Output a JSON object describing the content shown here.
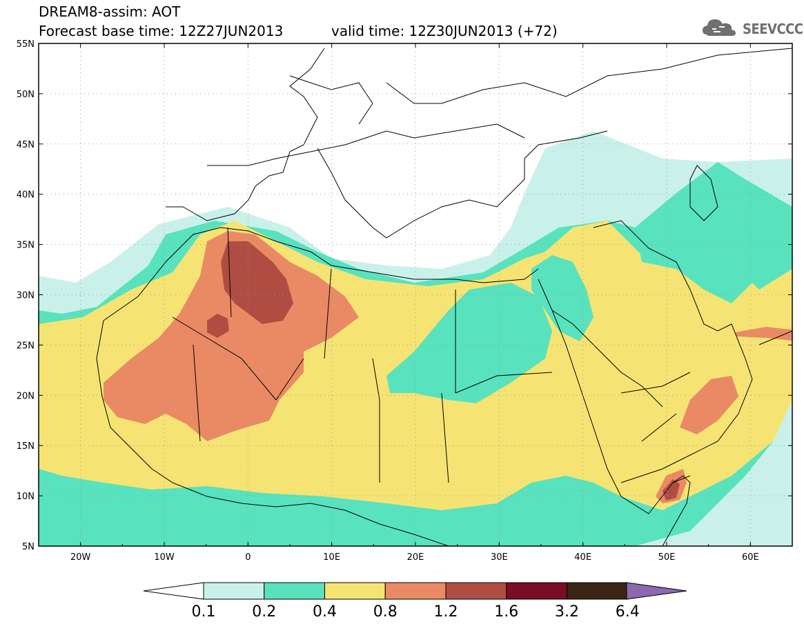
{
  "header": {
    "model_title": "DREAM8-assim: AOT",
    "base_time": "Forecast base time: 12Z27JUN2013",
    "valid_time": "valid time: 12Z30JUN2013 (+72)"
  },
  "logo": {
    "text": "SEEVCCC",
    "icon": "cloud-logo-icon"
  },
  "map": {
    "lat_labels": [
      "55N",
      "50N",
      "45N",
      "40N",
      "35N",
      "30N",
      "25N",
      "20N",
      "15N",
      "10N",
      "5N"
    ],
    "lon_labels": [
      "20W",
      "10W",
      "0",
      "10E",
      "20E",
      "30E",
      "40E",
      "50E",
      "60E"
    ],
    "lat_range": [
      5,
      55
    ],
    "lon_range": [
      -25,
      65
    ],
    "grid": "dotted"
  },
  "colorbar": {
    "labels": [
      "0.1",
      "0.2",
      "0.4",
      "0.8",
      "1.2",
      "1.6",
      "3.2",
      "6.4"
    ],
    "colors": [
      "#ffffff",
      "#c9f1ea",
      "#58e2bd",
      "#f5e473",
      "#e98a64",
      "#b04d42",
      "#7b0c25",
      "#3b2416",
      "#8c68ad"
    ]
  }
}
